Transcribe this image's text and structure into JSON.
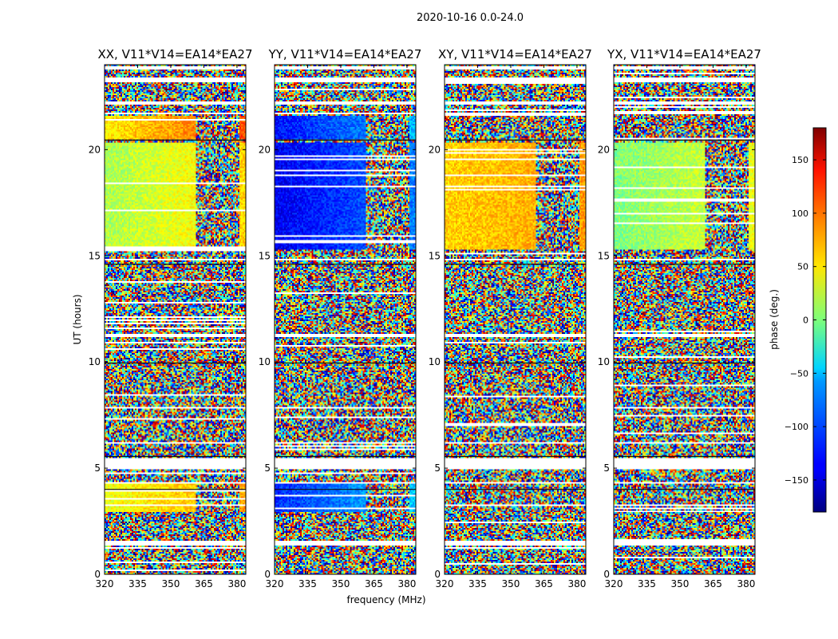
{
  "chart_data": {
    "type": "heatmap",
    "title": "2020-10-16 0.0-24.0",
    "xlabel": "frequency (MHz)",
    "ylabel": "UT (hours)",
    "xlim": [
      320,
      384
    ],
    "ylim": [
      0,
      24
    ],
    "x_ticks": [
      320,
      335,
      350,
      365,
      380
    ],
    "y_ticks": [
      0,
      5,
      10,
      15,
      20
    ],
    "colorbar": {
      "label": "phase (deg.)",
      "range": [
        -180,
        180
      ],
      "ticks": [
        -150,
        -100,
        -50,
        0,
        50,
        100,
        150
      ],
      "tick_labels": [
        "−150",
        "−100",
        "−50",
        "0",
        "50",
        "100",
        "150"
      ],
      "colormap": "jet"
    },
    "panels": [
      {
        "title": "XX, V11*V14=EA14*EA27",
        "good_windows": [
          {
            "ut": [
              15.3,
              20.3
            ],
            "mean_phase_low_freq": 15,
            "mean_phase_high_freq": 60
          },
          {
            "ut": [
              20.5,
              21.6
            ],
            "mean_phase_low_freq": 50,
            "mean_phase_high_freq": 110
          },
          {
            "ut": [
              2.9,
              4.3
            ],
            "mean_phase_low_freq": 40,
            "mean_phase_high_freq": 80
          }
        ]
      },
      {
        "title": "YY, V11*V14=EA14*EA27",
        "good_windows": [
          {
            "ut": [
              15.3,
              20.3
            ],
            "mean_phase_low_freq": -140,
            "mean_phase_high_freq": -90
          },
          {
            "ut": [
              20.5,
              21.6
            ],
            "mean_phase_low_freq": -130,
            "mean_phase_high_freq": -70
          },
          {
            "ut": [
              2.9,
              4.3
            ],
            "mean_phase_low_freq": -120,
            "mean_phase_high_freq": -60
          }
        ]
      },
      {
        "title": "XY, V11*V14=EA14*EA27",
        "good_windows": [
          {
            "ut": [
              15.3,
              20.3
            ],
            "mean_phase_low_freq": 60,
            "mean_phase_high_freq": 80
          }
        ]
      },
      {
        "title": "YX, V11*V14=EA14*EA27",
        "good_windows": [
          {
            "ut": [
              15.3,
              20.3
            ],
            "mean_phase_low_freq": 0,
            "mean_phase_high_freq": 40
          }
        ]
      }
    ],
    "colors": {
      "background": "#ffffff",
      "axes": "#000000"
    }
  }
}
